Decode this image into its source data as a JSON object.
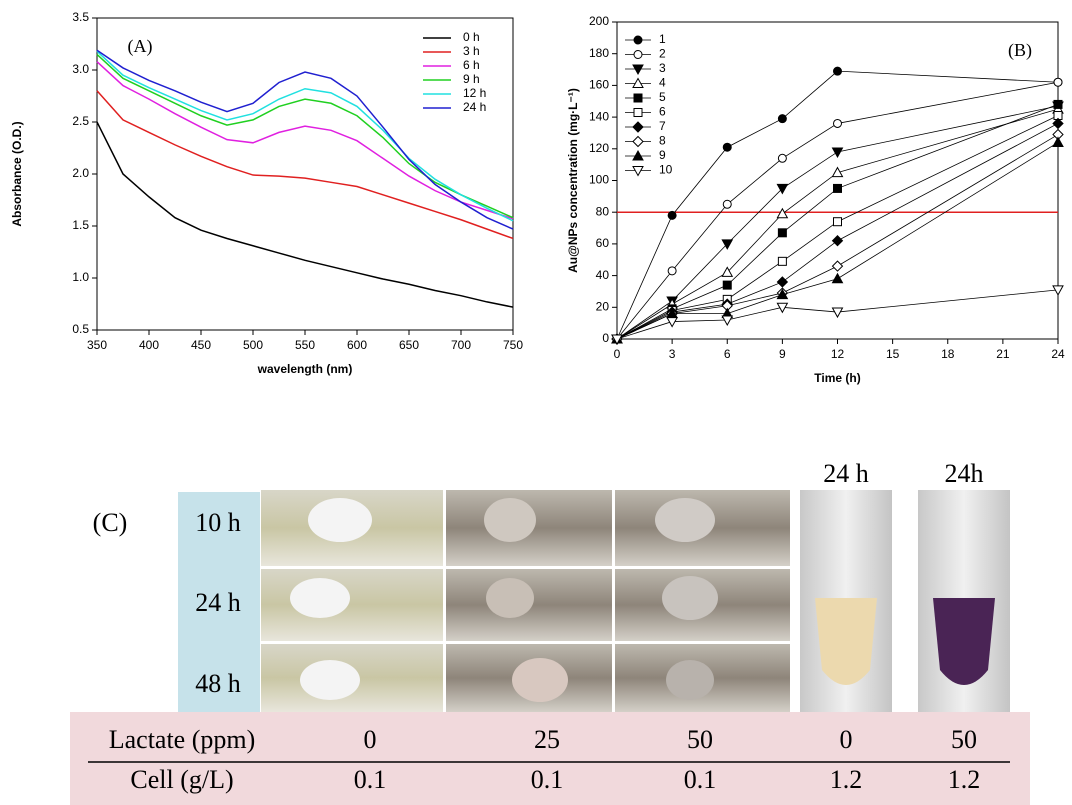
{
  "chart_data": [
    {
      "type": "line",
      "annotation": "(A)",
      "xlabel": "wavelength (nm)",
      "ylabel": "Absorbance (O.D.)",
      "x": [
        350,
        375,
        400,
        425,
        450,
        475,
        500,
        525,
        550,
        575,
        600,
        625,
        650,
        675,
        700,
        725,
        750
      ],
      "xlim": [
        350,
        750
      ],
      "xticks": [
        350,
        400,
        450,
        500,
        550,
        600,
        650,
        700,
        750
      ],
      "ylim": [
        0.5,
        3.5
      ],
      "yticks": [
        0.5,
        {
          "value": 1,
          "label": "1.0"
        },
        1.5,
        {
          "value": 2,
          "label": "2.0"
        },
        2.5,
        {
          "value": 3,
          "label": "3.0"
        },
        3.5
      ],
      "legend": "upper right",
      "series": [
        {
          "name": "0 h",
          "color": "#000000",
          "values": [
            2.5,
            2.0,
            1.78,
            1.58,
            1.46,
            1.38,
            1.31,
            1.24,
            1.17,
            1.11,
            1.05,
            0.99,
            0.94,
            0.88,
            0.83,
            0.77,
            0.72
          ]
        },
        {
          "name": "3 h",
          "color": "#e02020",
          "values": [
            2.8,
            2.52,
            2.4,
            2.28,
            2.17,
            2.07,
            1.99,
            1.98,
            1.96,
            1.92,
            1.88,
            1.8,
            1.72,
            1.64,
            1.56,
            1.47,
            1.38
          ]
        },
        {
          "name": "6 h",
          "color": "#e020e0",
          "values": [
            3.08,
            2.85,
            2.72,
            2.58,
            2.45,
            2.33,
            2.3,
            2.4,
            2.46,
            2.42,
            2.32,
            2.15,
            1.98,
            1.84,
            1.73,
            1.65,
            1.57
          ]
        },
        {
          "name": "9 h",
          "color": "#20d020",
          "values": [
            3.15,
            2.92,
            2.8,
            2.68,
            2.56,
            2.47,
            2.52,
            2.65,
            2.72,
            2.68,
            2.56,
            2.35,
            2.1,
            1.92,
            1.8,
            1.69,
            1.58
          ]
        },
        {
          "name": "12 h",
          "color": "#20e0e0",
          "values": [
            3.18,
            2.95,
            2.83,
            2.72,
            2.61,
            2.52,
            2.58,
            2.72,
            2.82,
            2.78,
            2.65,
            2.42,
            2.15,
            1.95,
            1.8,
            1.67,
            1.55
          ]
        },
        {
          "name": "24 h",
          "color": "#2020d0",
          "values": [
            3.19,
            3.02,
            2.9,
            2.8,
            2.69,
            2.6,
            2.68,
            2.88,
            2.98,
            2.92,
            2.75,
            2.45,
            2.14,
            1.9,
            1.73,
            1.58,
            1.47
          ]
        }
      ]
    },
    {
      "type": "line",
      "annotation": "(B)",
      "xlabel": "Time (h)",
      "ylabel": "Au@NPs concentration (mg·L⁻¹)",
      "x": [
        0,
        3,
        6,
        9,
        12,
        24
      ],
      "xlim": [
        0,
        24
      ],
      "xticks": [
        0,
        3,
        6,
        9,
        12,
        15,
        18,
        21,
        24
      ],
      "ylim": [
        0,
        200
      ],
      "yticks": [
        0,
        20,
        40,
        60,
        80,
        100,
        120,
        140,
        160,
        180,
        200
      ],
      "legend": "upper left",
      "hline": {
        "value": 80,
        "color": "#e02020"
      },
      "series": [
        {
          "name": "1",
          "color": "#000000",
          "marker": "circle",
          "filled": true,
          "values": [
            0,
            78,
            121,
            139,
            169,
            162
          ]
        },
        {
          "name": "2",
          "color": "#000000",
          "marker": "circle",
          "filled": false,
          "values": [
            0,
            43,
            85,
            114,
            136,
            162
          ]
        },
        {
          "name": "3",
          "color": "#000000",
          "marker": "triangle-down",
          "filled": true,
          "values": [
            0,
            24,
            60,
            95,
            118,
            147
          ]
        },
        {
          "name": "4",
          "color": "#000000",
          "marker": "triangle-up",
          "filled": false,
          "values": [
            0,
            22,
            42,
            79,
            105,
            145
          ]
        },
        {
          "name": "5",
          "color": "#000000",
          "marker": "square",
          "filled": true,
          "values": [
            0,
            19,
            34,
            67,
            95,
            148
          ]
        },
        {
          "name": "6",
          "color": "#000000",
          "marker": "square",
          "filled": false,
          "values": [
            0,
            18,
            25,
            49,
            74,
            141
          ]
        },
        {
          "name": "7",
          "color": "#000000",
          "marker": "diamond",
          "filled": true,
          "values": [
            0,
            17,
            22,
            36,
            62,
            136
          ]
        },
        {
          "name": "8",
          "color": "#000000",
          "marker": "diamond",
          "filled": false,
          "values": [
            0,
            16,
            21,
            29,
            46,
            129
          ]
        },
        {
          "name": "9",
          "color": "#000000",
          "marker": "triangle-up",
          "filled": true,
          "values": [
            0,
            16,
            16,
            28,
            38,
            124
          ]
        },
        {
          "name": "10",
          "color": "#000000",
          "marker": "triangle-down",
          "filled": false,
          "values": [
            0,
            11,
            12,
            20,
            17,
            31
          ]
        }
      ]
    }
  ],
  "panel_c": {
    "label": "(C)",
    "row_labels": [
      "10 h",
      "24 h",
      "48 h"
    ],
    "tube_labels": [
      "24 h",
      "24h"
    ],
    "table": {
      "rows": [
        [
          "Lactate (ppm)",
          "0",
          "25",
          "50",
          "0",
          "50"
        ],
        [
          "Cell  (g/L)",
          "0.1",
          "0.1",
          "0.1",
          "1.2",
          "1.2"
        ]
      ]
    }
  }
}
